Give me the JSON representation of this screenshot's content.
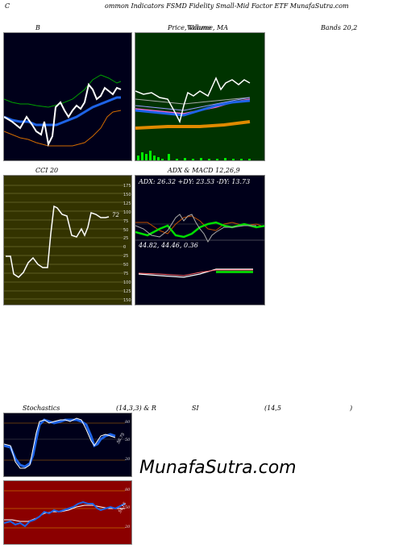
{
  "header": {
    "left": "C",
    "title": "ommon  Indicators FSMD Fidelity Small-Mid Factor ETF MunafaSutra.com"
  },
  "row1": {
    "b_label": "B",
    "price_label": "Price,  Volume,  MA",
    "price_overlap": "Volume",
    "bands_label": "Bands 20,2"
  },
  "row2": {
    "cci_label": "CCI 20",
    "cci_value": "72",
    "cci_ticks": [
      "175",
      "150",
      "125",
      "100",
      "75",
      "50",
      "25",
      "0",
      "25",
      "50",
      "75",
      "100",
      "125",
      "150",
      "175"
    ],
    "adx_label": "ADX  & MACD 12,26,9",
    "adx_values": "ADX: 26.32  +DY: 23.53 -DY: 13.73",
    "macd_values": "44.82,  44.46,  0.36"
  },
  "row3": {
    "stoch_label": "Stochastics",
    "stoch_params": "(14,3,3) & R",
    "si": "SI",
    "rsi_params": "(14,5",
    "rsi_close": ")",
    "stoch_ticks": [
      "80",
      "50",
      "20"
    ],
    "stoch_value": "56.75",
    "rsi_ticks": [
      "80",
      "50",
      "20"
    ],
    "rsi_value": "54.16"
  },
  "brand": "MunafaSutra.com",
  "colors": {
    "dark": "#00001a",
    "green": "#003300",
    "olive": "#333300",
    "red": "#8b0000",
    "blue": "#1e63e6",
    "orange": "#e08a00"
  }
}
